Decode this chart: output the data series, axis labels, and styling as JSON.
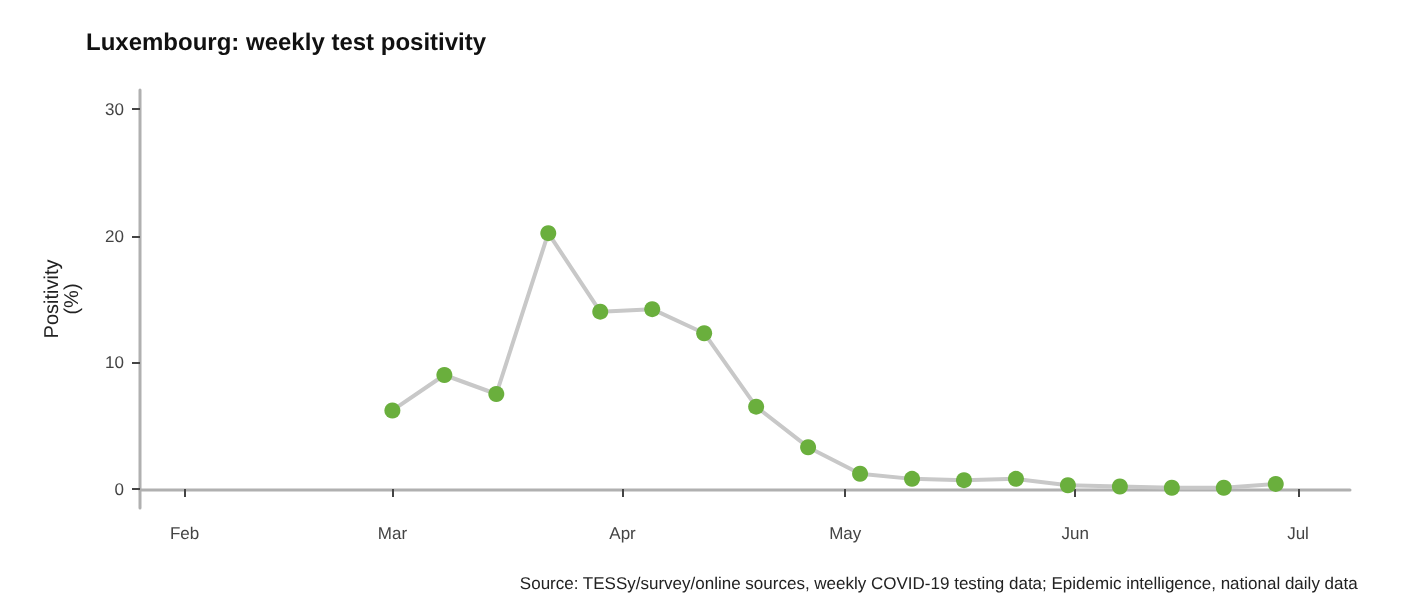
{
  "chart_data": {
    "type": "line",
    "title": "Luxembourg: weekly test positivity",
    "ylabel": "Positivity\n(%)",
    "annotations": [
      "Source: TESSy/survey/online sources, weekly COVID-19 testing data; Epidemic intelligence, national daily data"
    ],
    "x": [
      "--03-01",
      "--03-08",
      "--03-15",
      "--03-22",
      "--03-29",
      "--04-05",
      "--04-12",
      "--04-19",
      "--04-26",
      "--05-03",
      "--05-10",
      "--05-17",
      "--05-24",
      "--05-31",
      "--06-07",
      "--06-14",
      "--06-21",
      "--06-28"
    ],
    "series": [
      {
        "color": "#6aaf3d",
        "values": [
          6.2,
          9,
          7.5,
          20.2,
          14,
          14.2,
          12.3,
          6.5,
          3.3,
          1.2,
          0.8,
          0.7,
          0.8,
          0.3,
          0.2,
          0.1,
          0.1,
          0.4
        ]
      }
    ],
    "xlim": [
      "--01-26",
      "--07-08"
    ],
    "xticks": [
      {
        "value": "--02-01",
        "label": "Feb"
      },
      {
        "value": "--03-01",
        "label": "Mar"
      },
      {
        "value": "--04-01",
        "label": "Apr"
      },
      {
        "value": "--05-01",
        "label": "May"
      },
      {
        "value": "--06-01",
        "label": "Jun"
      },
      {
        "value": "--07-01",
        "label": "Jul"
      }
    ],
    "ylim": [
      -1.5,
      31.5
    ],
    "yticks": [
      0,
      10,
      20,
      30
    ],
    "grid": false,
    "marker": "circle",
    "line_style": "solid"
  }
}
